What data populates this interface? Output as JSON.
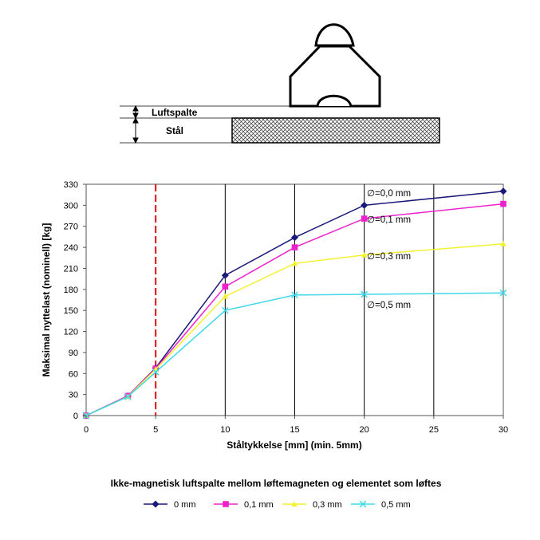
{
  "diagram": {
    "gap_label": "Luftspalte",
    "steel_label": "Stål"
  },
  "chart_data": {
    "type": "line",
    "xlabel": "Ståltykkelse [mm] (min. 5mm)",
    "ylabel": "Maksimal nyttelast (nominell) [kg]",
    "xlim": [
      0,
      30
    ],
    "ylim": [
      0,
      330
    ],
    "xticks": [
      0,
      5,
      10,
      15,
      20,
      25,
      30
    ],
    "yticks": [
      0,
      30,
      60,
      90,
      120,
      150,
      180,
      210,
      240,
      270,
      300,
      330
    ],
    "grid": "vertical",
    "min_thickness_line": 5,
    "legend_title": "Ikke-magnetisk luftspalte mellom løftemagneten og elementet som løftes",
    "legend_position": "bottom",
    "x": [
      0,
      3,
      5,
      10,
      15,
      20,
      30
    ],
    "series": [
      {
        "name": "0 mm",
        "color": "#1a1a7a",
        "marker": "diamond",
        "values": [
          0,
          28,
          68,
          200,
          254,
          300,
          320
        ],
        "annotation": "∅=0,0 mm"
      },
      {
        "name": "0,1 mm",
        "color": "#ee22cc",
        "marker": "square",
        "values": [
          0,
          28,
          67,
          184,
          240,
          281,
          302
        ],
        "annotation": "∅=0,1 mm"
      },
      {
        "name": "0,3 mm",
        "color": "#f2f230",
        "marker": "triangle",
        "values": [
          0,
          27,
          66,
          170,
          217,
          229,
          245
        ],
        "annotation": "∅=0,3 mm"
      },
      {
        "name": "0,5 mm",
        "color": "#40d8e8",
        "marker": "x",
        "values": [
          0,
          27,
          62,
          150,
          172,
          173,
          175
        ],
        "annotation": "∅=0,5 mm"
      }
    ]
  }
}
